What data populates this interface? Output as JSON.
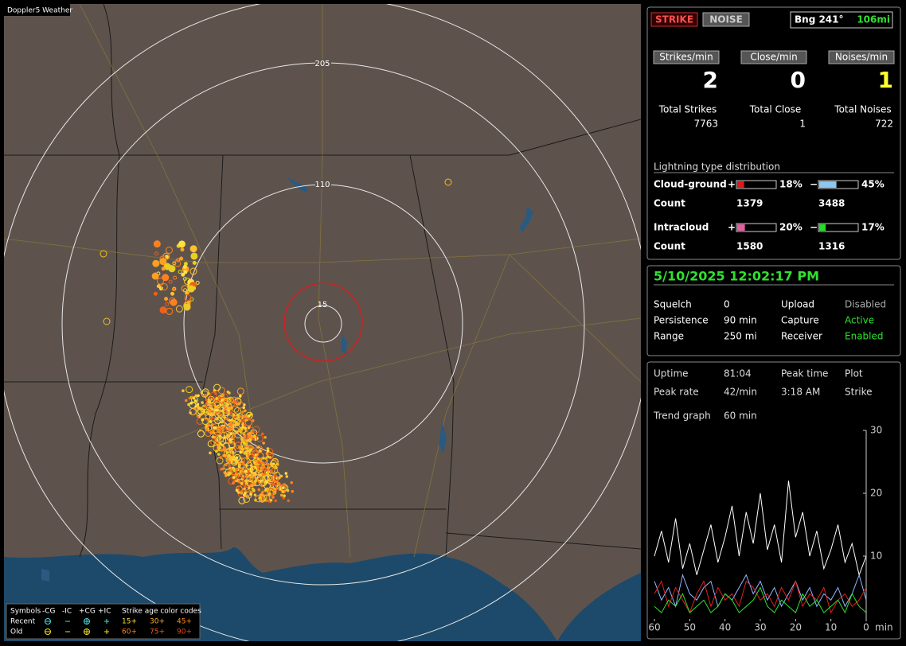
{
  "map": {
    "title": "Doppler5 Weather",
    "ring_labels": [
      "205",
      "110",
      "15"
    ]
  },
  "legend": {
    "header": [
      "Symbols",
      "-CG",
      "-IC",
      "+CG",
      "+IC",
      "Strike age color codes"
    ],
    "rows": [
      {
        "label": "Recent",
        "ages": [
          "15+",
          "30+",
          "45+"
        ]
      },
      {
        "label": "Old",
        "ages": [
          "60+",
          "75+",
          "90+"
        ]
      }
    ]
  },
  "status": {
    "strike": "STRIKE",
    "noise": "NOISE",
    "bearing": "Bng 241°",
    "distance": "106mi"
  },
  "rates": [
    {
      "label": "Strikes/min",
      "value": 2,
      "total_label": "Total Strikes",
      "total": 7763
    },
    {
      "label": "Close/min",
      "value": 0,
      "total_label": "Total Close",
      "total": 1
    },
    {
      "label": "Noises/min",
      "value": 1,
      "total_label": "Total Noises",
      "total": 722
    }
  ],
  "distribution": {
    "title": "Lightning type distribution",
    "count_label": "Count",
    "rows": [
      {
        "label": "Cloud-ground",
        "pos": {
          "sign": "+",
          "pct": 18,
          "pct_label": "18%",
          "count": 1379,
          "color": "#e01818"
        },
        "neg": {
          "sign": "−",
          "pct": 45,
          "pct_label": "45%",
          "count": 3488,
          "color": "#8cc8f0"
        }
      },
      {
        "label": "Intracloud",
        "pos": {
          "sign": "+",
          "pct": 20,
          "pct_label": "20%",
          "count": 1580,
          "color": "#e060a0"
        },
        "neg": {
          "sign": "−",
          "pct": 17,
          "pct_label": "17%",
          "count": 1316,
          "color": "#20e020"
        }
      }
    ]
  },
  "info": {
    "datetime": "5/10/2025 12:02:17 PM",
    "rows": [
      [
        "Squelch",
        "0",
        "Upload",
        "Disabled"
      ],
      [
        "Persistence",
        "90 min",
        "Capture",
        "Active"
      ],
      [
        "Range",
        "250 mi",
        "Receiver",
        "Enabled"
      ]
    ]
  },
  "stats": {
    "rows": [
      [
        "Uptime",
        "81:04",
        "Peak time",
        "Plot"
      ],
      [
        "Peak rate",
        "42/min",
        "3:18 AM",
        "Strike"
      ]
    ],
    "trend_label": "Trend graph",
    "trend_window": "60 min"
  },
  "trend": {
    "type": "line",
    "xlim": [
      60,
      0
    ],
    "ylim": [
      0,
      30
    ],
    "xticks": [
      60,
      50,
      40,
      30,
      20,
      10,
      0
    ],
    "x_unit": "min",
    "yticks": [
      10,
      20,
      30
    ],
    "x": [
      60,
      58,
      56,
      54,
      52,
      50,
      48,
      46,
      44,
      42,
      40,
      38,
      36,
      34,
      32,
      30,
      28,
      26,
      24,
      22,
      20,
      18,
      16,
      14,
      12,
      10,
      8,
      6,
      4,
      2,
      0
    ],
    "series": [
      {
        "color": "#ffffff",
        "values": [
          10,
          14,
          9,
          16,
          8,
          12,
          7,
          11,
          15,
          9,
          13,
          18,
          10,
          17,
          12,
          20,
          11,
          15,
          9,
          22,
          13,
          17,
          10,
          14,
          8,
          11,
          15,
          9,
          12,
          7,
          10
        ]
      },
      {
        "color": "#90b8ff",
        "values": [
          6,
          3,
          5,
          2,
          7,
          4,
          3,
          5,
          6,
          2,
          4,
          3,
          5,
          7,
          4,
          6,
          3,
          5,
          2,
          4,
          6,
          3,
          5,
          2,
          4,
          3,
          5,
          2,
          4,
          7,
          3
        ]
      },
      {
        "color": "#e02020",
        "values": [
          4,
          6,
          2,
          5,
          3,
          1,
          4,
          6,
          2,
          5,
          3,
          4,
          2,
          6,
          5,
          3,
          4,
          2,
          5,
          3,
          6,
          2,
          4,
          3,
          5,
          1,
          3,
          4,
          2,
          3,
          5
        ]
      },
      {
        "color": "#30e030",
        "values": [
          2,
          1,
          3,
          2,
          4,
          1,
          2,
          3,
          1,
          2,
          4,
          3,
          1,
          2,
          3,
          5,
          2,
          1,
          3,
          2,
          1,
          4,
          2,
          3,
          1,
          2,
          3,
          1,
          4,
          2,
          1
        ]
      }
    ]
  }
}
